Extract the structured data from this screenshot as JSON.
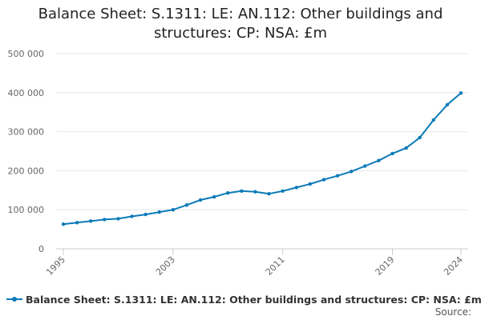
{
  "chart_data": {
    "type": "line",
    "title_lines": [
      "Balance Sheet: S.1311: LE: AN.112: Other buildings and",
      "structures: CP: NSA: £m"
    ],
    "xlabel": "",
    "ylabel": "",
    "x": [
      1995,
      1996,
      1997,
      1998,
      1999,
      2000,
      2001,
      2002,
      2003,
      2004,
      2005,
      2006,
      2007,
      2008,
      2009,
      2010,
      2011,
      2012,
      2013,
      2014,
      2015,
      2016,
      2017,
      2018,
      2019,
      2020,
      2021,
      2022,
      2023,
      2024
    ],
    "x_tick_labels": [
      "1995",
      "2003",
      "2011",
      "2019",
      "2024"
    ],
    "y_tick_labels": [
      "0",
      "100 000",
      "200 000",
      "300 000",
      "400 000",
      "500 000"
    ],
    "ylim": [
      0,
      500000
    ],
    "grid": true,
    "legend_position": "bottom",
    "series": [
      {
        "name": "Balance Sheet: S.1311: LE: AN.112: Other buildings and structures: CP: NSA: £m",
        "color": "#0b7ab8",
        "values": [
          63000,
          67000,
          71000,
          75000,
          77000,
          83000,
          88000,
          94000,
          100000,
          112000,
          125000,
          133000,
          143000,
          148000,
          146000,
          141000,
          148000,
          157000,
          166000,
          177000,
          187000,
          198000,
          212000,
          226000,
          244000,
          258000,
          285000,
          330000,
          369000,
          399000
        ]
      }
    ]
  },
  "source_label": "Source:"
}
